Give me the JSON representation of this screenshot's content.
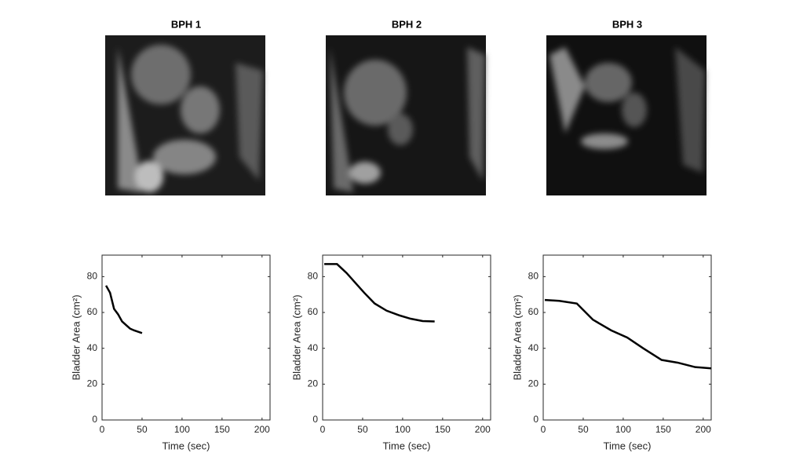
{
  "chart_data": [
    {
      "type": "line",
      "title": "BPH 1",
      "x_label": "Time (sec)",
      "y_label": "Bladder Area (cm²)",
      "color": "#000000",
      "x": [
        5,
        10,
        15,
        20,
        25,
        30,
        35,
        40,
        50
      ],
      "values": [
        75,
        71,
        62,
        59,
        55,
        53,
        51,
        50,
        48.5
      ],
      "xlim": [
        0,
        210
      ],
      "xticks": [
        0,
        50,
        100,
        150,
        200
      ],
      "ylim": [
        0,
        92
      ],
      "yticks": [
        0,
        20,
        40,
        60,
        80
      ]
    },
    {
      "type": "line",
      "title": "BPH 2",
      "x_label": "Time (sec)",
      "y_label": "Bladder Area (cm²)",
      "color": "#000000",
      "x": [
        2,
        18,
        30,
        42,
        52,
        65,
        80,
        95,
        110,
        125,
        140
      ],
      "values": [
        87,
        87,
        82,
        76,
        71,
        65,
        61,
        58.5,
        56.5,
        55.2,
        55
      ],
      "xlim": [
        0,
        210
      ],
      "xticks": [
        0,
        50,
        100,
        150,
        200
      ],
      "ylim": [
        0,
        92
      ],
      "yticks": [
        0,
        20,
        40,
        60,
        80
      ]
    },
    {
      "type": "line",
      "title": "BPH 3",
      "x_label": "Time (sec)",
      "y_label": "Bladder Area (cm²)",
      "color": "#000000",
      "x": [
        2,
        20,
        42,
        62,
        85,
        105,
        125,
        148,
        168,
        190,
        210
      ],
      "values": [
        67,
        66.5,
        65,
        56,
        50,
        46,
        40,
        33.5,
        32,
        29.5,
        28.8
      ],
      "xlim": [
        0,
        210
      ],
      "xticks": [
        0,
        50,
        100,
        150,
        200
      ],
      "ylim": [
        0,
        92
      ],
      "yticks": [
        0,
        20,
        40,
        60,
        80
      ]
    }
  ]
}
